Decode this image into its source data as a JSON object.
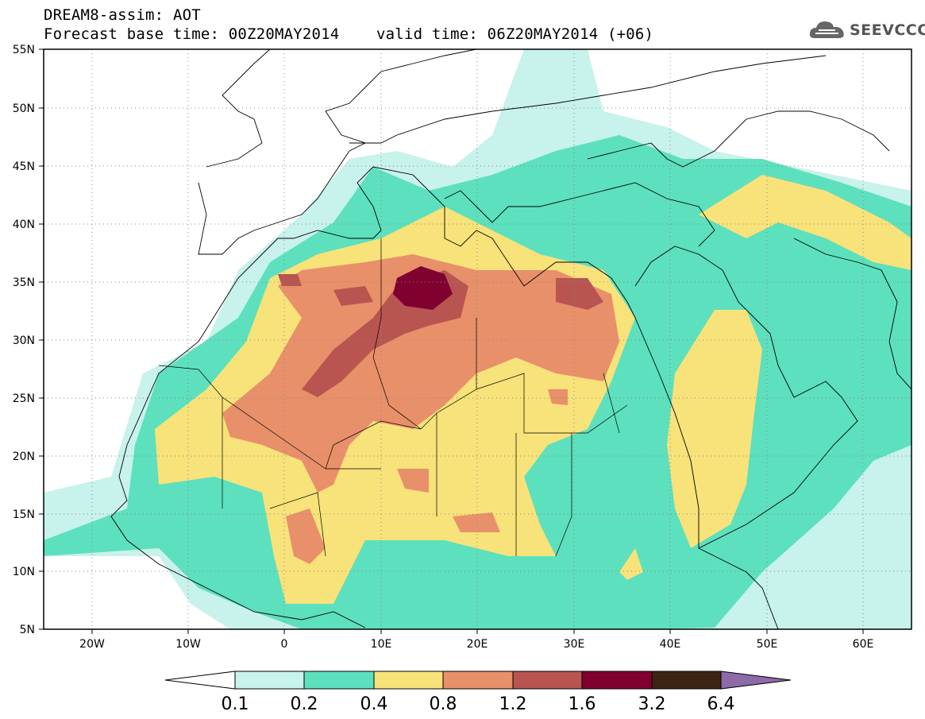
{
  "header": {
    "title_line1": "DREAM8-assim: AOT",
    "base_time_label": "Forecast base time: 00Z20MAY2014",
    "valid_time_label": "valid time: 06Z20MAY2014 (+06)"
  },
  "logo": {
    "text": "SEEVCCC",
    "icon": "cloud-icon"
  },
  "map": {
    "region": "North Africa, Mediterranean, Middle East",
    "lon_range": [
      -25,
      65
    ],
    "lat_range": [
      5,
      55
    ],
    "lat_labels": [
      "55N",
      "50N",
      "45N",
      "40N",
      "35N",
      "30N",
      "25N",
      "20N",
      "15N",
      "10N",
      "5N"
    ],
    "lon_labels": [
      "20W",
      "10W",
      "0",
      "10E",
      "20E",
      "30E",
      "40E",
      "50E",
      "60E"
    ],
    "gridlines": "dotted"
  },
  "colorbar": {
    "levels": [
      "0.1",
      "0.2",
      "0.4",
      "0.8",
      "1.2",
      "1.6",
      "3.2",
      "6.4"
    ],
    "colors": [
      "#ffffff",
      "#c8f2ec",
      "#5de0bd",
      "#f8e27a",
      "#e8906a",
      "#b85550",
      "#800030",
      "#3e2415",
      "#8e6aa8"
    ]
  }
}
